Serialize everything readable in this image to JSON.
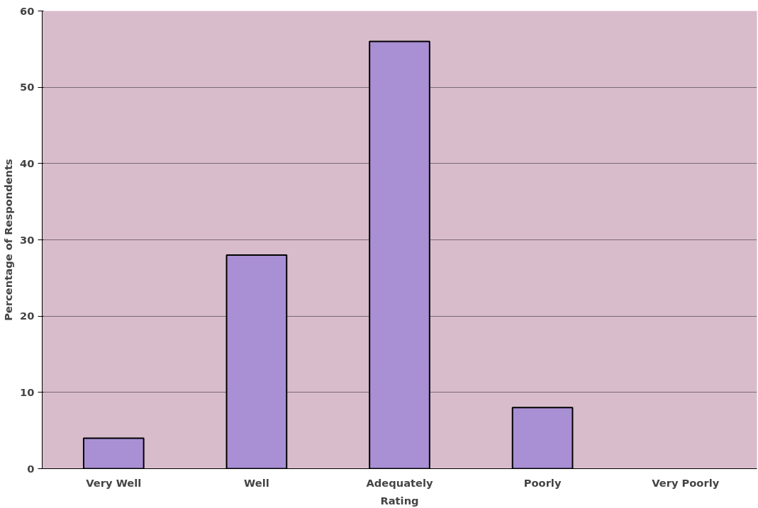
{
  "chart_data": {
    "type": "bar",
    "xlabel": "Rating",
    "ylabel": "Percentage of Respondents",
    "categories": [
      "Very Well",
      "Well",
      "Adequately",
      "Poorly",
      "Very Poorly"
    ],
    "values": [
      4,
      28,
      56,
      8,
      0
    ],
    "color": "#a98fd4",
    "ylim": [
      0,
      60
    ],
    "yticks": [
      0,
      10,
      20,
      30,
      40,
      50,
      60
    ],
    "grid": "y"
  }
}
